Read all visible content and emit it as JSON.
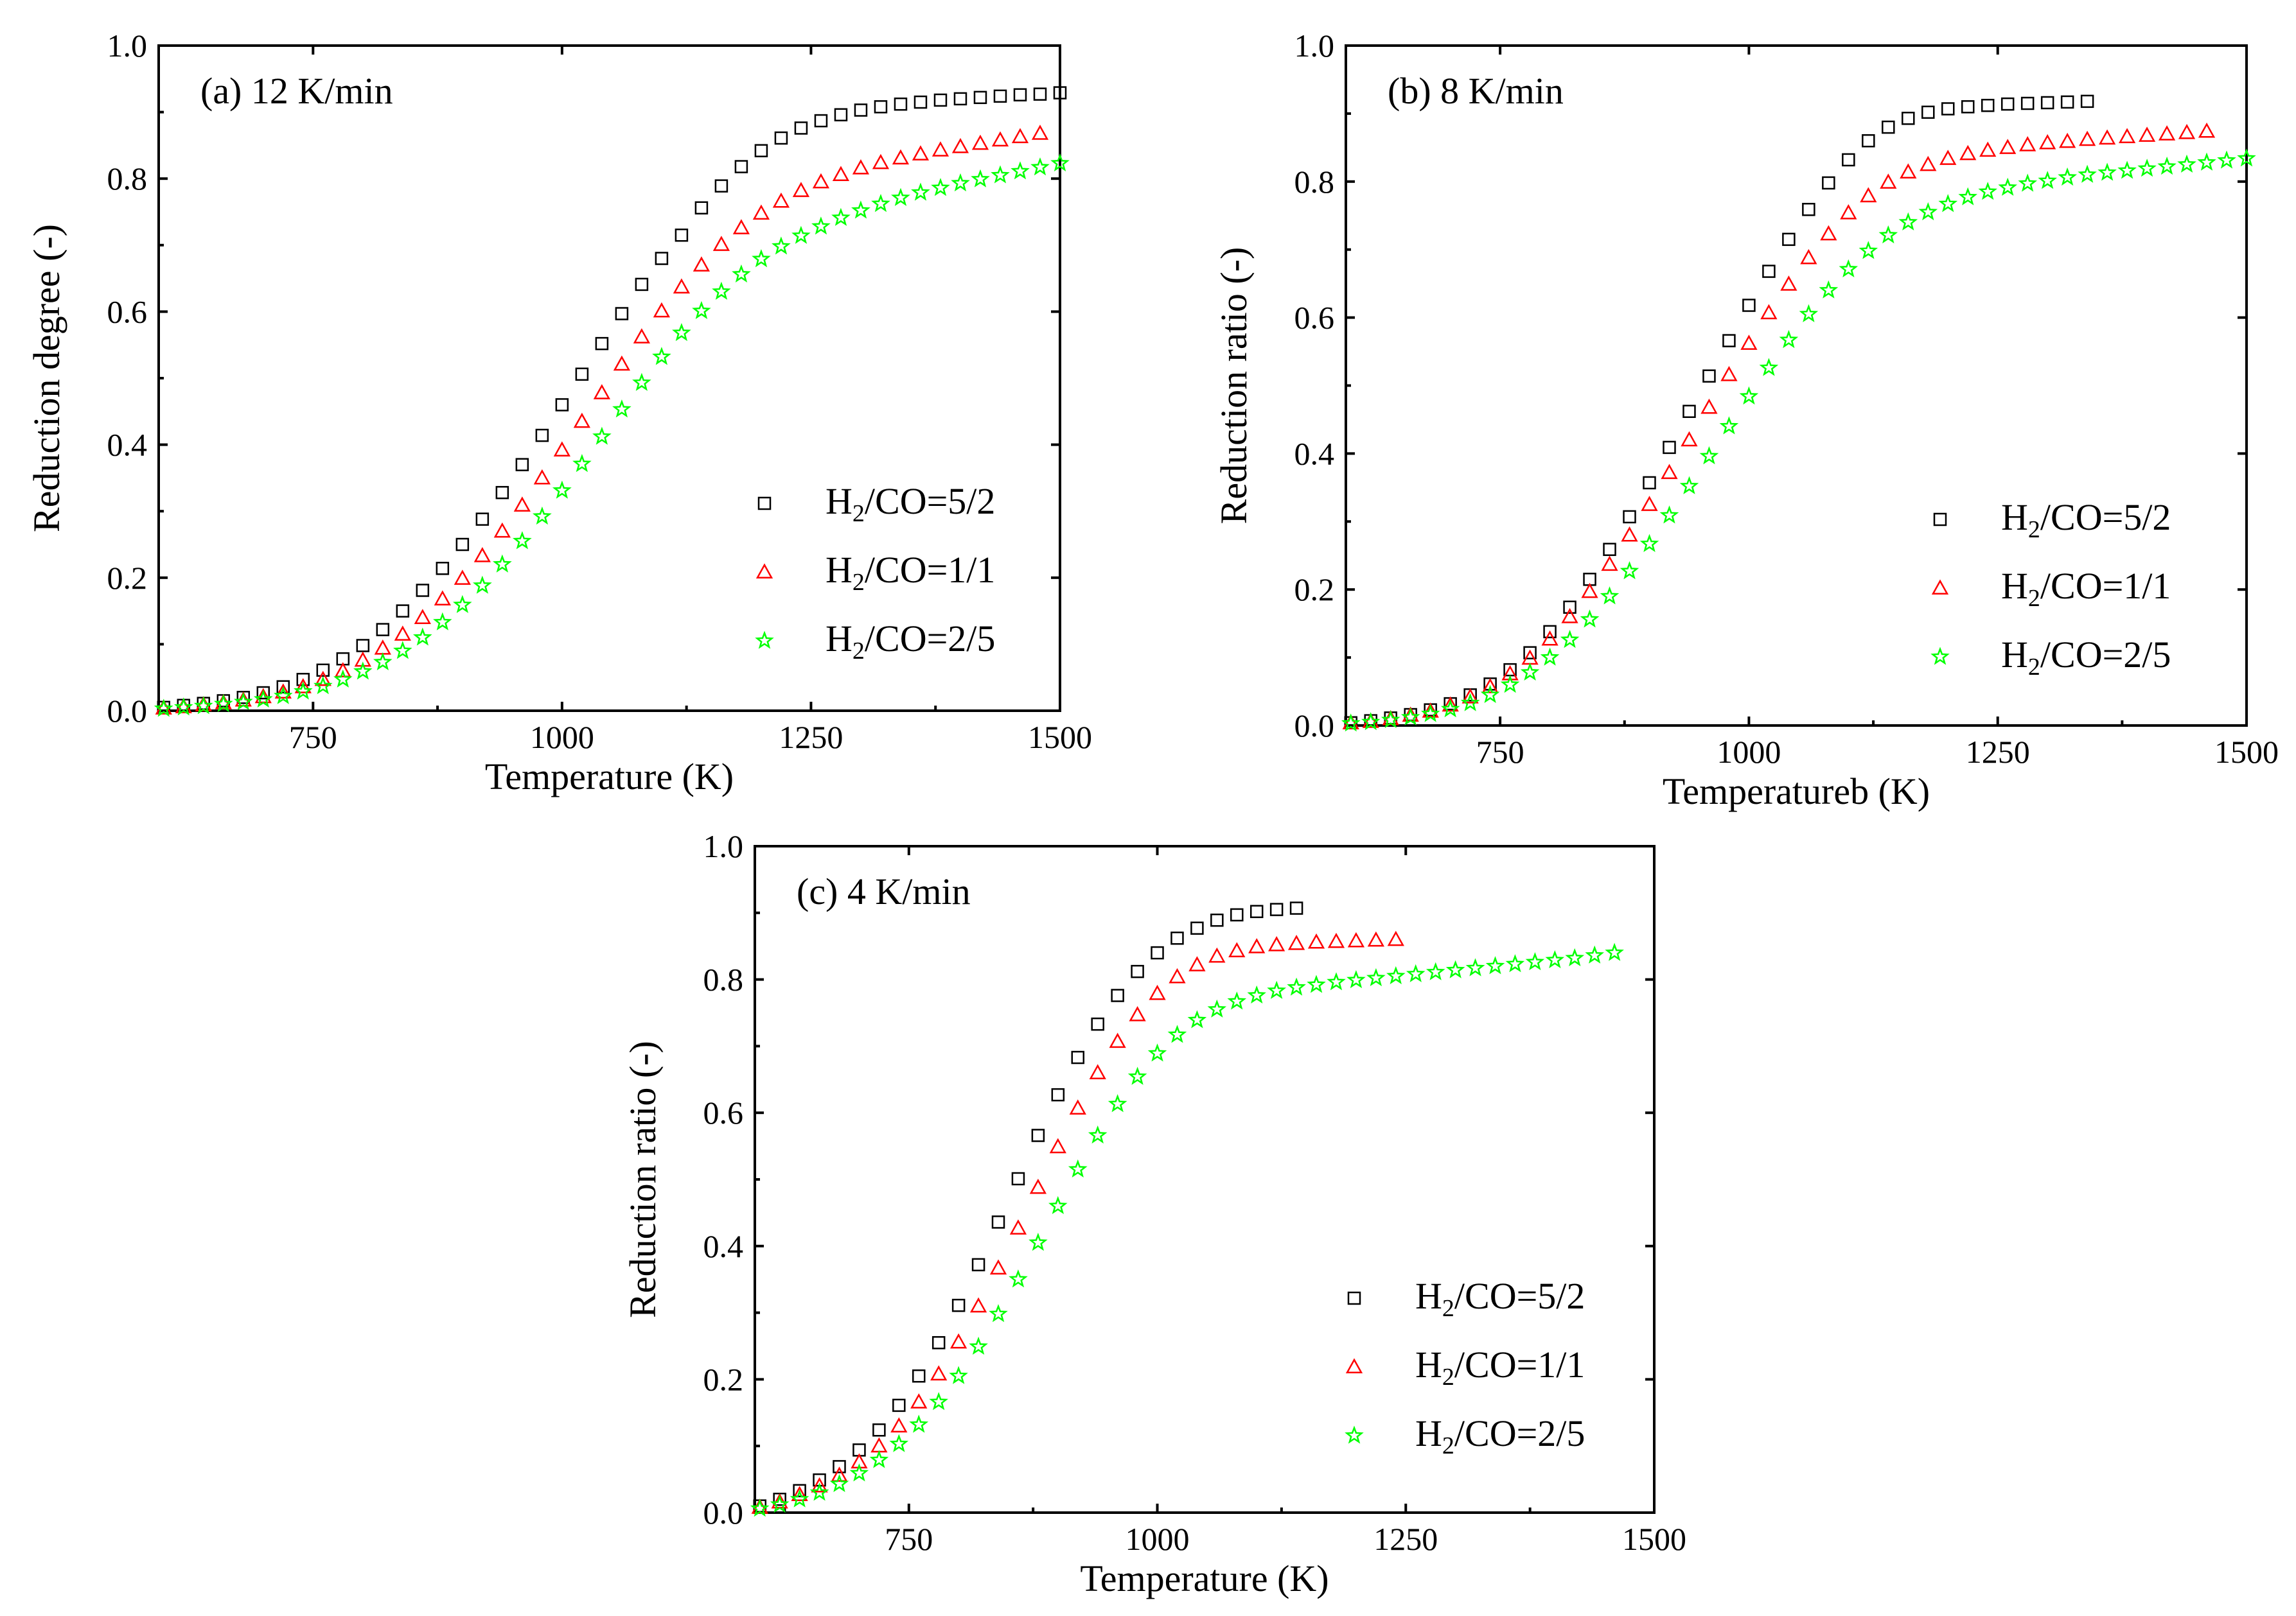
{
  "colors": {
    "series_5_2": "#000000",
    "series_1_1": "#ff0000",
    "series_2_5": "#00ff00"
  },
  "chart_data": [
    {
      "id": "a",
      "type": "scatter",
      "title": "(a) 12 K/min",
      "xlabel": "Temperature (K)",
      "ylabel": "Reduction degree (-)",
      "xlim": [
        595,
        1500
      ],
      "ylim": [
        0,
        1.0
      ],
      "xticks": [
        750,
        1000,
        1250,
        1500
      ],
      "yticks": [
        0.0,
        0.2,
        0.4,
        0.6,
        0.8,
        1.0
      ],
      "legend_position": "center-right",
      "series": [
        {
          "name": "H2/CO=5/2",
          "label_main": "H",
          "label_sub": "2",
          "label_rest": "/CO=5/2",
          "marker": "square",
          "color": "#000000",
          "x": [
            600,
            620,
            640,
            660,
            680,
            700,
            720,
            740,
            760,
            780,
            800,
            820,
            840,
            860,
            880,
            900,
            920,
            940,
            960,
            980,
            1000,
            1020,
            1040,
            1060,
            1080,
            1100,
            1120,
            1140,
            1160,
            1180,
            1200,
            1220,
            1240,
            1260,
            1280,
            1300,
            1320,
            1340,
            1360,
            1380,
            1400,
            1420,
            1440,
            1460,
            1480,
            1500
          ],
          "y": [
            0.005,
            0.008,
            0.011,
            0.015,
            0.02,
            0.027,
            0.036,
            0.047,
            0.061,
            0.078,
            0.098,
            0.122,
            0.15,
            0.181,
            0.214,
            0.25,
            0.288,
            0.328,
            0.37,
            0.414,
            0.46,
            0.506,
            0.552,
            0.597,
            0.641,
            0.68,
            0.715,
            0.756,
            0.789,
            0.818,
            0.842,
            0.861,
            0.876,
            0.887,
            0.896,
            0.903,
            0.908,
            0.912,
            0.915,
            0.918,
            0.92,
            0.922,
            0.924,
            0.926,
            0.927,
            0.929
          ]
        },
        {
          "name": "H2/CO=1/1",
          "label_main": "H",
          "label_sub": "2",
          "label_rest": "/CO=1/1",
          "marker": "triangle",
          "color": "#ff0000",
          "x": [
            600,
            620,
            640,
            660,
            680,
            700,
            720,
            740,
            760,
            780,
            800,
            820,
            840,
            860,
            880,
            900,
            920,
            940,
            960,
            980,
            1000,
            1020,
            1040,
            1060,
            1080,
            1100,
            1120,
            1140,
            1160,
            1180,
            1200,
            1220,
            1240,
            1260,
            1280,
            1300,
            1320,
            1340,
            1360,
            1380,
            1400,
            1420,
            1440,
            1460,
            1480
          ],
          "y": [
            0.004,
            0.006,
            0.009,
            0.012,
            0.016,
            0.021,
            0.028,
            0.036,
            0.047,
            0.06,
            0.076,
            0.094,
            0.115,
            0.14,
            0.168,
            0.199,
            0.233,
            0.27,
            0.309,
            0.35,
            0.392,
            0.435,
            0.478,
            0.521,
            0.562,
            0.601,
            0.637,
            0.67,
            0.701,
            0.726,
            0.748,
            0.766,
            0.782,
            0.795,
            0.806,
            0.816,
            0.824,
            0.831,
            0.837,
            0.843,
            0.848,
            0.853,
            0.858,
            0.863,
            0.868
          ]
        },
        {
          "name": "H2/CO=2/5",
          "label_main": "H",
          "label_sub": "2",
          "label_rest": "/CO=2/5",
          "marker": "star",
          "color": "#00ff00",
          "x": [
            600,
            620,
            640,
            660,
            680,
            700,
            720,
            740,
            760,
            780,
            800,
            820,
            840,
            860,
            880,
            900,
            920,
            940,
            960,
            980,
            1000,
            1020,
            1040,
            1060,
            1080,
            1100,
            1120,
            1140,
            1160,
            1180,
            1200,
            1220,
            1240,
            1260,
            1280,
            1300,
            1320,
            1340,
            1360,
            1380,
            1400,
            1420,
            1440,
            1460,
            1480,
            1500
          ],
          "y": [
            0.003,
            0.005,
            0.007,
            0.01,
            0.013,
            0.017,
            0.022,
            0.029,
            0.037,
            0.047,
            0.059,
            0.073,
            0.09,
            0.11,
            0.133,
            0.159,
            0.188,
            0.22,
            0.255,
            0.292,
            0.331,
            0.371,
            0.412,
            0.453,
            0.493,
            0.532,
            0.568,
            0.601,
            0.63,
            0.656,
            0.679,
            0.698,
            0.714,
            0.728,
            0.741,
            0.752,
            0.762,
            0.771,
            0.779,
            0.786,
            0.793,
            0.799,
            0.805,
            0.811,
            0.817,
            0.823
          ]
        }
      ]
    },
    {
      "id": "b",
      "type": "scatter",
      "title": "(b) 8 K/min",
      "xlabel": "Temperatureb (K)",
      "ylabel": "Reduction ratio (-)",
      "xlim": [
        595,
        1500
      ],
      "ylim": [
        0,
        1.0
      ],
      "xticks": [
        750,
        1000,
        1250,
        1500
      ],
      "yticks": [
        0.0,
        0.2,
        0.4,
        0.6,
        0.8,
        1.0
      ],
      "legend_position": "center-right",
      "series": [
        {
          "name": "H2/CO=5/2",
          "label_main": "H",
          "label_sub": "2",
          "label_rest": "/CO=5/2",
          "marker": "square",
          "color": "#000000",
          "x": [
            600,
            620,
            640,
            660,
            680,
            700,
            720,
            740,
            760,
            780,
            800,
            820,
            840,
            860,
            880,
            900,
            920,
            940,
            960,
            980,
            1000,
            1020,
            1040,
            1060,
            1080,
            1100,
            1120,
            1140,
            1160,
            1180,
            1200,
            1220,
            1240,
            1260,
            1280,
            1300,
            1320,
            1340
          ],
          "y": [
            0.004,
            0.007,
            0.011,
            0.016,
            0.023,
            0.032,
            0.045,
            0.061,
            0.082,
            0.107,
            0.138,
            0.174,
            0.215,
            0.259,
            0.307,
            0.357,
            0.409,
            0.462,
            0.514,
            0.566,
            0.618,
            0.668,
            0.715,
            0.759,
            0.798,
            0.832,
            0.86,
            0.88,
            0.893,
            0.902,
            0.907,
            0.91,
            0.912,
            0.914,
            0.915,
            0.916,
            0.917,
            0.918
          ]
        },
        {
          "name": "H2/CO=1/1",
          "label_main": "H",
          "label_sub": "2",
          "label_rest": "/CO=1/1",
          "marker": "triangle",
          "color": "#ff0000",
          "x": [
            600,
            620,
            640,
            660,
            680,
            700,
            720,
            740,
            760,
            780,
            800,
            820,
            840,
            860,
            880,
            900,
            920,
            940,
            960,
            980,
            1000,
            1020,
            1040,
            1060,
            1080,
            1100,
            1120,
            1140,
            1160,
            1180,
            1200,
            1220,
            1240,
            1260,
            1280,
            1300,
            1320,
            1340,
            1360,
            1380,
            1400,
            1420,
            1440,
            1460
          ],
          "y": [
            0.004,
            0.006,
            0.01,
            0.015,
            0.021,
            0.03,
            0.042,
            0.057,
            0.076,
            0.099,
            0.127,
            0.16,
            0.197,
            0.237,
            0.28,
            0.325,
            0.372,
            0.42,
            0.468,
            0.516,
            0.562,
            0.607,
            0.649,
            0.688,
            0.723,
            0.754,
            0.779,
            0.799,
            0.814,
            0.825,
            0.834,
            0.841,
            0.846,
            0.85,
            0.854,
            0.857,
            0.859,
            0.862,
            0.864,
            0.866,
            0.868,
            0.87,
            0.872,
            0.874
          ]
        },
        {
          "name": "H2/CO=2/5",
          "label_main": "H",
          "label_sub": "2",
          "label_rest": "/CO=2/5",
          "marker": "star",
          "color": "#00ff00",
          "x": [
            600,
            620,
            640,
            660,
            680,
            700,
            720,
            740,
            760,
            780,
            800,
            820,
            840,
            860,
            880,
            900,
            920,
            940,
            960,
            980,
            1000,
            1020,
            1040,
            1060,
            1080,
            1100,
            1120,
            1140,
            1160,
            1180,
            1200,
            1220,
            1240,
            1260,
            1280,
            1300,
            1320,
            1340,
            1360,
            1380,
            1400,
            1420,
            1440,
            1460,
            1480,
            1500
          ],
          "y": [
            0.003,
            0.005,
            0.008,
            0.012,
            0.017,
            0.024,
            0.033,
            0.045,
            0.06,
            0.078,
            0.1,
            0.126,
            0.156,
            0.19,
            0.227,
            0.267,
            0.309,
            0.352,
            0.396,
            0.44,
            0.484,
            0.526,
            0.567,
            0.605,
            0.64,
            0.671,
            0.698,
            0.721,
            0.74,
            0.755,
            0.767,
            0.777,
            0.785,
            0.791,
            0.797,
            0.801,
            0.806,
            0.81,
            0.813,
            0.816,
            0.819,
            0.822,
            0.825,
            0.828,
            0.831,
            0.834
          ]
        }
      ]
    },
    {
      "id": "c",
      "type": "scatter",
      "title": "(c) 4 K/min",
      "xlabel": "Temperature (K)",
      "ylabel": "Reduction ratio (-)",
      "xlim": [
        595,
        1500
      ],
      "ylim": [
        0,
        1.0
      ],
      "xticks": [
        750,
        1000,
        1250,
        1500
      ],
      "yticks": [
        0.0,
        0.2,
        0.4,
        0.6,
        0.8,
        1.0
      ],
      "legend_position": "center-right",
      "series": [
        {
          "name": "H2/CO=5/2",
          "label_main": "H",
          "label_sub": "2",
          "label_rest": "/CO=5/2",
          "marker": "square",
          "color": "#000000",
          "x": [
            600,
            620,
            640,
            660,
            680,
            700,
            720,
            740,
            760,
            780,
            800,
            820,
            840,
            860,
            880,
            900,
            920,
            940,
            960,
            980,
            1000,
            1020,
            1040,
            1060,
            1080,
            1100,
            1120,
            1140
          ],
          "y": [
            0.01,
            0.02,
            0.033,
            0.049,
            0.069,
            0.094,
            0.124,
            0.161,
            0.205,
            0.255,
            0.311,
            0.372,
            0.436,
            0.501,
            0.566,
            0.627,
            0.683,
            0.733,
            0.776,
            0.812,
            0.84,
            0.862,
            0.877,
            0.889,
            0.897,
            0.902,
            0.905,
            0.907
          ]
        },
        {
          "name": "H2/CO=1/1",
          "label_main": "H",
          "label_sub": "2",
          "label_rest": "/CO=1/1",
          "marker": "triangle",
          "color": "#ff0000",
          "x": [
            600,
            620,
            640,
            660,
            680,
            700,
            720,
            740,
            760,
            780,
            800,
            820,
            840,
            860,
            880,
            900,
            920,
            940,
            960,
            980,
            1000,
            1020,
            1040,
            1060,
            1080,
            1100,
            1120,
            1140,
            1160,
            1180,
            1200,
            1220,
            1240
          ],
          "y": [
            0.008,
            0.016,
            0.027,
            0.04,
            0.056,
            0.076,
            0.1,
            0.13,
            0.166,
            0.208,
            0.256,
            0.31,
            0.367,
            0.427,
            0.488,
            0.549,
            0.607,
            0.66,
            0.707,
            0.747,
            0.779,
            0.804,
            0.822,
            0.835,
            0.843,
            0.849,
            0.852,
            0.854,
            0.856,
            0.857,
            0.858,
            0.859,
            0.86
          ]
        },
        {
          "name": "H2/CO=2/5",
          "label_main": "H",
          "label_sub": "2",
          "label_rest": "/CO=2/5",
          "marker": "star",
          "color": "#00ff00",
          "x": [
            600,
            620,
            640,
            660,
            680,
            700,
            720,
            740,
            760,
            780,
            800,
            820,
            840,
            860,
            880,
            900,
            920,
            940,
            960,
            980,
            1000,
            1020,
            1040,
            1060,
            1080,
            1100,
            1120,
            1140,
            1160,
            1180,
            1200,
            1220,
            1240,
            1260,
            1280,
            1300,
            1320,
            1340,
            1360,
            1380,
            1400,
            1420,
            1440,
            1460
          ],
          "y": [
            0.006,
            0.012,
            0.02,
            0.03,
            0.043,
            0.059,
            0.079,
            0.103,
            0.132,
            0.166,
            0.205,
            0.249,
            0.298,
            0.35,
            0.405,
            0.46,
            0.515,
            0.566,
            0.613,
            0.654,
            0.689,
            0.717,
            0.739,
            0.755,
            0.767,
            0.776,
            0.783,
            0.788,
            0.792,
            0.796,
            0.799,
            0.802,
            0.805,
            0.808,
            0.811,
            0.814,
            0.817,
            0.82,
            0.823,
            0.826,
            0.829,
            0.832,
            0.836,
            0.84
          ]
        }
      ]
    }
  ]
}
